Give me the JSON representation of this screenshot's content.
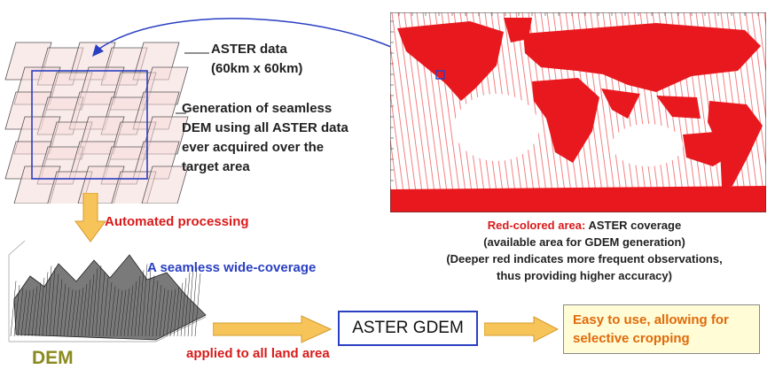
{
  "aster_data": {
    "line1": "ASTER data",
    "line2": "(60km x 60km)"
  },
  "generation": {
    "lines": [
      "Generation of seamless",
      "DEM using all ASTER data",
      "ever acquired over the",
      "target area"
    ]
  },
  "automated_processing": "Automated processing",
  "seamless_coverage": "A seamless wide-coverage",
  "dem_label": "DEM",
  "applied_label": "applied to all land area",
  "gdem_label": "ASTER GDEM",
  "easy": {
    "line1": "Easy to use, allowing for",
    "line2": "selective cropping"
  },
  "caption": {
    "red_part": "Red-colored area:",
    "rest": " ASTER coverage",
    "line2": "(available area for GDEM generation)",
    "line3": "(Deeper red indicates more frequent observations,",
    "line4": "thus providing higher accuracy)"
  },
  "colors": {
    "red_text": "#d91a1a",
    "blue_text": "#2a3fc2",
    "arrow_fill": "#f7c45a",
    "map_red": "#e8191e",
    "tile_fill": "#f6dada"
  }
}
